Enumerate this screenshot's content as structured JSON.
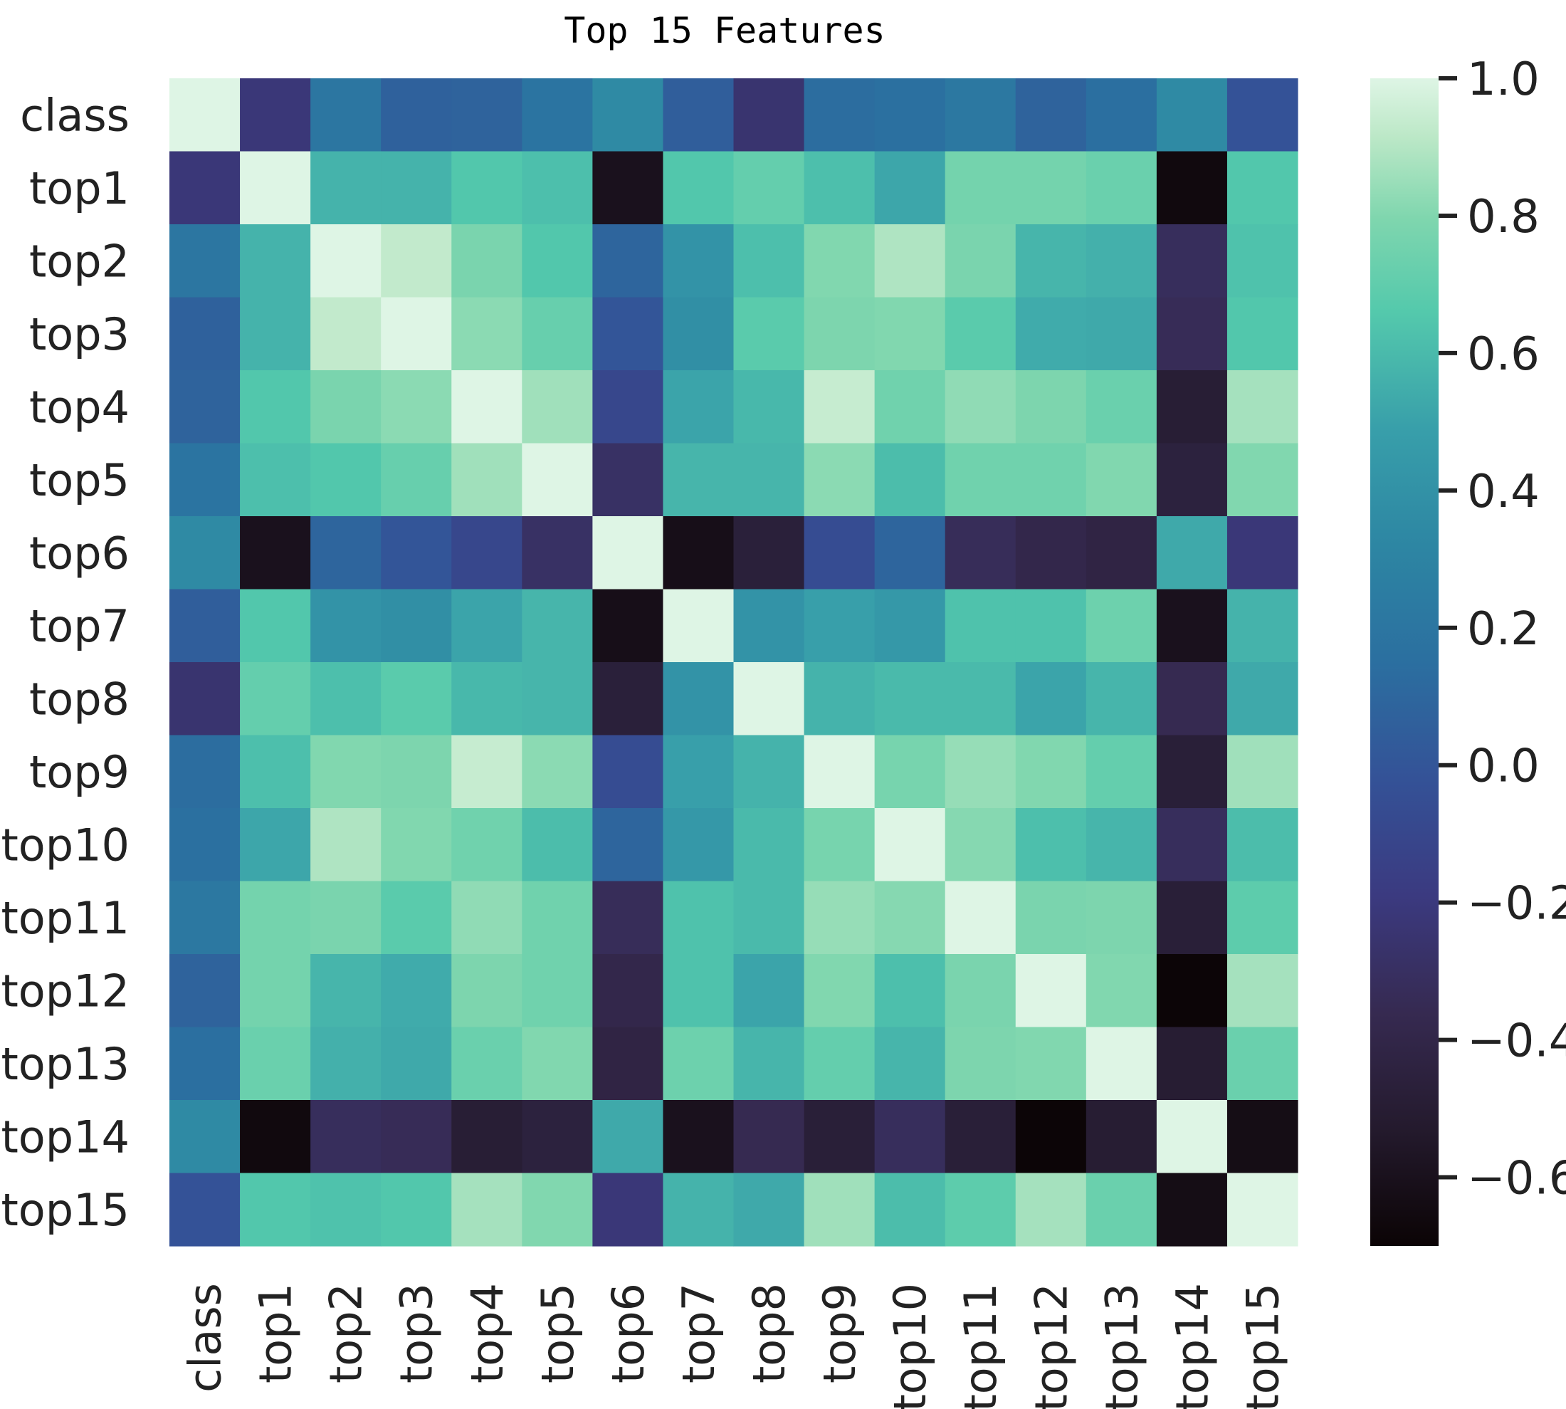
{
  "chart_data": {
    "type": "heatmap",
    "title": "Top 15 Features",
    "labels": [
      "class",
      "top1",
      "top2",
      "top3",
      "top4",
      "top5",
      "top6",
      "top7",
      "top8",
      "top9",
      "top10",
      "top11",
      "top12",
      "top13",
      "top14",
      "top15"
    ],
    "matrix": [
      [
        1.0,
        -0.22,
        0.2,
        0.07,
        0.08,
        0.19,
        0.35,
        0.05,
        -0.25,
        0.14,
        0.16,
        0.22,
        0.08,
        0.15,
        0.35,
        -0.02
      ],
      [
        -0.22,
        1.0,
        0.57,
        0.57,
        0.65,
        0.62,
        -0.6,
        0.65,
        0.71,
        0.62,
        0.52,
        0.76,
        0.76,
        0.73,
        -0.66,
        0.65
      ],
      [
        0.2,
        0.57,
        1.0,
        0.93,
        0.78,
        0.65,
        0.09,
        0.41,
        0.62,
        0.8,
        0.89,
        0.78,
        0.58,
        0.56,
        -0.32,
        0.63
      ],
      [
        0.07,
        0.57,
        0.93,
        1.0,
        0.82,
        0.72,
        0.0,
        0.38,
        0.68,
        0.79,
        0.8,
        0.68,
        0.54,
        0.53,
        -0.34,
        0.65
      ],
      [
        0.08,
        0.65,
        0.78,
        0.82,
        1.0,
        0.86,
        -0.1,
        0.51,
        0.59,
        0.94,
        0.75,
        0.83,
        0.79,
        0.73,
        -0.49,
        0.87
      ],
      [
        0.19,
        0.62,
        0.65,
        0.72,
        0.86,
        1.0,
        -0.29,
        0.58,
        0.58,
        0.82,
        0.61,
        0.75,
        0.75,
        0.8,
        -0.45,
        0.8
      ],
      [
        0.35,
        -0.6,
        0.09,
        0.0,
        -0.1,
        -0.29,
        1.0,
        -0.62,
        -0.47,
        -0.06,
        0.09,
        -0.33,
        -0.39,
        -0.42,
        0.53,
        -0.22
      ],
      [
        0.05,
        0.65,
        0.41,
        0.38,
        0.51,
        0.58,
        -0.62,
        1.0,
        0.41,
        0.49,
        0.44,
        0.63,
        0.63,
        0.74,
        -0.6,
        0.57
      ],
      [
        -0.25,
        0.71,
        0.62,
        0.68,
        0.59,
        0.58,
        -0.47,
        0.41,
        1.0,
        0.57,
        0.6,
        0.6,
        0.51,
        0.58,
        -0.36,
        0.53
      ],
      [
        0.14,
        0.62,
        0.8,
        0.79,
        0.94,
        0.82,
        -0.06,
        0.49,
        0.57,
        1.0,
        0.77,
        0.84,
        0.8,
        0.71,
        -0.48,
        0.86
      ],
      [
        0.16,
        0.52,
        0.89,
        0.8,
        0.75,
        0.61,
        0.09,
        0.44,
        0.6,
        0.77,
        1.0,
        0.81,
        0.62,
        0.58,
        -0.32,
        0.61
      ],
      [
        0.22,
        0.76,
        0.78,
        0.68,
        0.83,
        0.75,
        -0.33,
        0.63,
        0.6,
        0.84,
        0.81,
        1.0,
        0.78,
        0.79,
        -0.48,
        0.69
      ],
      [
        0.08,
        0.76,
        0.58,
        0.54,
        0.79,
        0.75,
        -0.39,
        0.63,
        0.51,
        0.8,
        0.62,
        0.78,
        1.0,
        0.8,
        -0.69,
        0.87
      ],
      [
        0.15,
        0.73,
        0.56,
        0.53,
        0.73,
        0.8,
        -0.42,
        0.74,
        0.58,
        0.71,
        0.58,
        0.79,
        0.8,
        1.0,
        -0.5,
        0.73
      ],
      [
        0.35,
        -0.66,
        -0.32,
        -0.34,
        -0.49,
        -0.45,
        0.53,
        -0.6,
        -0.36,
        -0.48,
        -0.32,
        -0.48,
        -0.69,
        -0.5,
        1.0,
        -0.63
      ],
      [
        -0.02,
        0.65,
        0.63,
        0.65,
        0.87,
        0.8,
        -0.22,
        0.57,
        0.53,
        0.86,
        0.61,
        0.69,
        0.87,
        0.73,
        -0.63,
        1.0
      ]
    ],
    "colorbar": {
      "vmin": -0.7,
      "vmax": 1.0,
      "ticks": [
        1.0,
        0.8,
        0.6,
        0.4,
        0.2,
        0.0,
        -0.2,
        -0.4,
        -0.6
      ],
      "tick_labels": [
        "1.0",
        "0.8",
        "0.6",
        "0.4",
        "0.2",
        "0.0",
        "−0.2",
        "−0.4",
        "−0.6"
      ],
      "colormap": "mako",
      "colormap_stops": [
        [
          0.0,
          "#0b0405"
        ],
        [
          0.1,
          "#241a2d"
        ],
        [
          0.2,
          "#362a51"
        ],
        [
          0.3,
          "#3b3a80"
        ],
        [
          0.4,
          "#345297"
        ],
        [
          0.5,
          "#2b6fa0"
        ],
        [
          0.6,
          "#2d86a3"
        ],
        [
          0.7,
          "#389faa"
        ],
        [
          0.8,
          "#54c9ac"
        ],
        [
          0.88,
          "#7fd6ae"
        ],
        [
          0.95,
          "#bce8c7"
        ],
        [
          1.0,
          "#def5e5"
        ]
      ]
    }
  }
}
